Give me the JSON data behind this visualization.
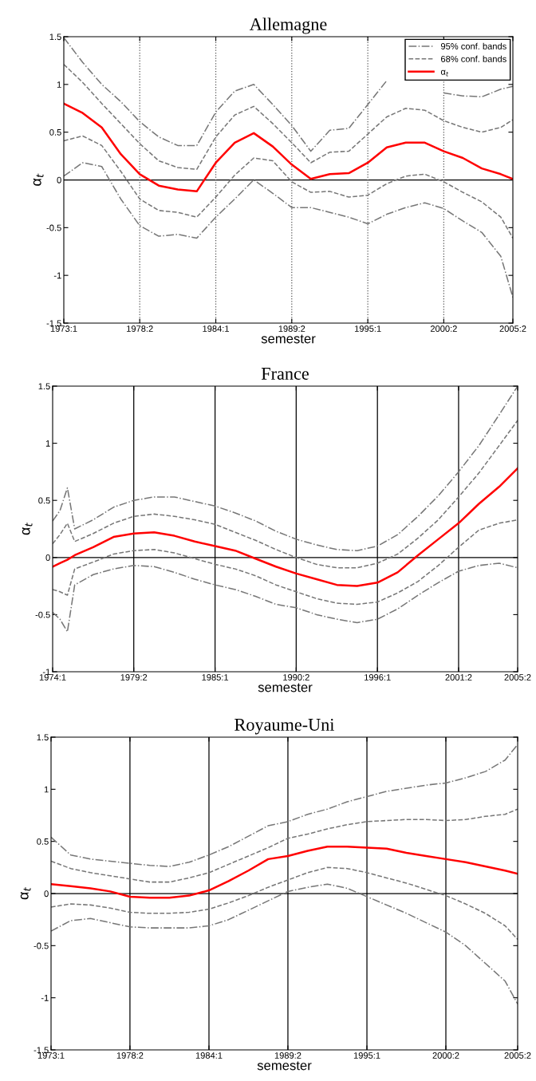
{
  "chart_data": [
    {
      "type": "line",
      "title": "Allemagne",
      "xlabel": "semester",
      "ylabel": "α$_{t}$",
      "legend": "top right",
      "x": [
        "1973-01-01",
        "1974-05-16",
        "1975-10-01",
        "1977-02-15",
        "1978-07-01",
        "1979-11-16",
        "1981-04-01",
        "1982-08-16",
        "1984-01-01",
        "1985-05-16",
        "1986-10-01",
        "1988-02-15",
        "1989-07-01",
        "1990-11-16",
        "1992-04-01",
        "1993-08-16",
        "1995-01-01",
        "1996-05-16",
        "1997-10-01",
        "1999-02-15",
        "2000-07-01",
        "2001-11-16",
        "2003-04-01",
        "2004-08-16",
        "2005-07-01"
      ],
      "xlim": [
        "1973-01-01",
        "2005-07-01"
      ],
      "xticks": [
        {
          "value": "1973-01-01",
          "label": "1973:1"
        },
        {
          "value": "1978-07-01",
          "label": "1978:2"
        },
        {
          "value": "1984-01-01",
          "label": "1984:1"
        },
        {
          "value": "1989-07-01",
          "label": "1989:2"
        },
        {
          "value": "1995-01-01",
          "label": "1995:1"
        },
        {
          "value": "2000-07-01",
          "label": "2000:2"
        },
        {
          "value": "2005-07-01",
          "label": "2005:2"
        }
      ],
      "ylim": [
        -1.5,
        1.5
      ],
      "yticks": [
        -1.5,
        -1,
        -0.5,
        0,
        0.5,
        1,
        1.5
      ],
      "ref_lines": [
        {
          "axis": "y",
          "value": 0,
          "color": "#000000",
          "line_style": "solid"
        },
        {
          "axis": "x",
          "value": "1978-07-01",
          "color": "#555555",
          "line_style": "dotted"
        },
        {
          "axis": "x",
          "value": "1984-01-01",
          "color": "#555555",
          "line_style": "dotted"
        },
        {
          "axis": "x",
          "value": "1989-07-01",
          "color": "#555555",
          "line_style": "dotted"
        },
        {
          "axis": "x",
          "value": "1995-01-01",
          "color": "#555555",
          "line_style": "dotted"
        },
        {
          "axis": "x",
          "value": "2000-07-01",
          "color": "#555555",
          "line_style": "dotted"
        }
      ],
      "series": [
        {
          "name": "95% conf. bands",
          "color": "#777777",
          "line_style": "dashdot",
          "values": [
            1.49,
            1.23,
            1.0,
            0.82,
            0.61,
            0.45,
            0.36,
            0.36,
            0.71,
            0.93,
            1.0,
            0.79,
            0.57,
            0.3,
            0.52,
            0.54,
            0.79,
            1.04,
            null,
            null,
            0.91,
            0.88,
            0.87,
            0.95,
            0.98
          ]
        },
        {
          "name": "68% conf. bands",
          "color": "#777777",
          "line_style": "dashed",
          "values": [
            1.21,
            1.02,
            0.8,
            0.59,
            0.38,
            0.2,
            0.13,
            0.11,
            0.45,
            0.68,
            0.77,
            0.59,
            0.39,
            0.18,
            0.29,
            0.3,
            0.48,
            0.66,
            0.75,
            0.73,
            0.62,
            0.55,
            0.5,
            0.55,
            0.63
          ]
        },
        {
          "name": "α$_{t}$",
          "color": "#ff0000",
          "line_style": "solid",
          "values": [
            0.8,
            0.7,
            0.55,
            0.27,
            0.06,
            -0.06,
            -0.1,
            -0.12,
            0.18,
            0.39,
            0.49,
            0.35,
            0.16,
            0.01,
            0.06,
            0.07,
            0.18,
            0.34,
            0.39,
            0.39,
            0.3,
            0.23,
            0.12,
            0.06,
            0.01
          ]
        },
        {
          "color": "#777777",
          "line_style": "dashed",
          "values": [
            0.41,
            0.46,
            0.36,
            0.09,
            -0.2,
            -0.32,
            -0.34,
            -0.39,
            -0.18,
            0.05,
            0.23,
            0.2,
            -0.02,
            -0.13,
            -0.12,
            -0.18,
            -0.16,
            -0.04,
            0.04,
            0.06,
            -0.02,
            -0.13,
            -0.23,
            -0.39,
            -0.61
          ]
        },
        {
          "color": "#777777",
          "line_style": "dashdot",
          "values": [
            0.04,
            0.18,
            0.14,
            -0.2,
            -0.48,
            -0.59,
            -0.57,
            -0.61,
            -0.39,
            -0.2,
            0.0,
            -0.14,
            -0.29,
            -0.29,
            -0.34,
            -0.39,
            -0.46,
            -0.36,
            -0.29,
            -0.24,
            -0.3,
            -0.43,
            -0.55,
            -0.8,
            -1.23
          ]
        }
      ]
    },
    {
      "type": "line",
      "title": "France",
      "xlabel": "semester",
      "ylabel": "α$_{t}$",
      "x": [
        "1974-01-01",
        "1974-07-01",
        "1975-01-01",
        "1975-07-01",
        "1976-10-01",
        "1978-02-15",
        "1979-07-01",
        "1980-11-16",
        "1982-04-01",
        "1983-08-16",
        "1985-01-01",
        "1986-05-16",
        "1987-10-01",
        "1989-02-15",
        "1990-07-01",
        "1991-11-16",
        "1993-04-01",
        "1994-08-16",
        "1996-01-01",
        "1997-05-16",
        "1998-10-01",
        "2000-02-15",
        "2001-07-01",
        "2002-11-16",
        "2004-04-01",
        "2005-07-01"
      ],
      "xlim": [
        "1974-01-01",
        "2005-07-01"
      ],
      "xticks": [
        {
          "value": "1974-01-01",
          "label": "1974:1"
        },
        {
          "value": "1979-07-01",
          "label": "1979:2"
        },
        {
          "value": "1985-01-01",
          "label": "1985:1"
        },
        {
          "value": "1990-07-01",
          "label": "1990:2"
        },
        {
          "value": "1996-01-01",
          "label": "1996:1"
        },
        {
          "value": "2001-07-01",
          "label": "2001:2"
        },
        {
          "value": "2005-07-01",
          "label": "2005:2"
        }
      ],
      "ylim": [
        -1,
        1.5
      ],
      "yticks": [
        -1,
        -0.5,
        0,
        0.5,
        1,
        1.5
      ],
      "ref_lines": [
        {
          "axis": "y",
          "value": 0,
          "color": "#000000",
          "line_style": "solid"
        },
        {
          "axis": "x",
          "value": "1979-07-01",
          "color": "#000000",
          "line_style": "solid"
        },
        {
          "axis": "x",
          "value": "1985-01-01",
          "color": "#000000",
          "line_style": "solid"
        },
        {
          "axis": "x",
          "value": "1990-07-01",
          "color": "#000000",
          "line_style": "solid"
        },
        {
          "axis": "x",
          "value": "1996-01-01",
          "color": "#000000",
          "line_style": "solid"
        },
        {
          "axis": "x",
          "value": "2001-07-01",
          "color": "#000000",
          "line_style": "solid"
        }
      ],
      "series": [
        {
          "color": "#777777",
          "line_style": "dashdot",
          "values": [
            0.32,
            0.41,
            0.61,
            0.25,
            0.33,
            0.44,
            0.5,
            0.53,
            0.53,
            0.49,
            0.45,
            0.39,
            0.32,
            0.23,
            0.16,
            0.11,
            0.07,
            0.06,
            0.1,
            0.2,
            0.36,
            0.54,
            0.75,
            0.98,
            1.25,
            1.5
          ]
        },
        {
          "color": "#777777",
          "line_style": "dashed",
          "values": [
            0.12,
            0.2,
            0.3,
            0.14,
            0.21,
            0.3,
            0.36,
            0.38,
            0.36,
            0.33,
            0.29,
            0.22,
            0.15,
            0.07,
            0.0,
            -0.06,
            -0.09,
            -0.09,
            -0.05,
            0.03,
            0.17,
            0.33,
            0.53,
            0.74,
            0.98,
            1.2
          ]
        },
        {
          "color": "#ff0000",
          "line_style": "solid",
          "values": [
            -0.08,
            -0.05,
            -0.02,
            0.02,
            0.09,
            0.18,
            0.21,
            0.22,
            0.19,
            0.14,
            0.1,
            0.06,
            -0.01,
            -0.08,
            -0.14,
            -0.19,
            -0.24,
            -0.25,
            -0.22,
            -0.13,
            0.02,
            0.16,
            0.3,
            0.47,
            0.62,
            0.78
          ]
        },
        {
          "color": "#777777",
          "line_style": "dashed",
          "values": [
            -0.28,
            -0.3,
            -0.33,
            -0.1,
            -0.04,
            0.03,
            0.06,
            0.07,
            0.04,
            -0.01,
            -0.06,
            -0.1,
            -0.16,
            -0.24,
            -0.3,
            -0.36,
            -0.4,
            -0.41,
            -0.39,
            -0.31,
            -0.21,
            -0.07,
            0.09,
            0.24,
            0.3,
            0.33
          ]
        },
        {
          "color": "#777777",
          "line_style": "dashdot",
          "values": [
            -0.48,
            -0.54,
            -0.65,
            -0.24,
            -0.15,
            -0.1,
            -0.07,
            -0.08,
            -0.13,
            -0.19,
            -0.24,
            -0.28,
            -0.34,
            -0.41,
            -0.44,
            -0.5,
            -0.54,
            -0.57,
            -0.54,
            -0.45,
            -0.33,
            -0.22,
            -0.12,
            -0.07,
            -0.05,
            -0.09
          ]
        }
      ]
    },
    {
      "type": "line",
      "title": "Royaume-Uni",
      "xlabel": "semester",
      "ylabel": "α$_{t}$",
      "x": [
        "1973-01-01",
        "1974-05-16",
        "1975-10-01",
        "1977-02-15",
        "1978-07-01",
        "1979-11-16",
        "1981-04-01",
        "1982-08-16",
        "1984-01-01",
        "1985-05-16",
        "1986-10-01",
        "1988-02-15",
        "1989-07-01",
        "1990-11-16",
        "1992-04-01",
        "1993-08-16",
        "1995-01-01",
        "1996-05-16",
        "1997-10-01",
        "1999-02-15",
        "2000-07-01",
        "2001-11-16",
        "2003-04-01",
        "2004-08-16",
        "2005-07-01"
      ],
      "xlim": [
        "1973-01-01",
        "2005-07-01"
      ],
      "xticks": [
        {
          "value": "1973-01-01",
          "label": "1973:1"
        },
        {
          "value": "1978-07-01",
          "label": "1978:2"
        },
        {
          "value": "1984-01-01",
          "label": "1984:1"
        },
        {
          "value": "1989-07-01",
          "label": "1989:2"
        },
        {
          "value": "1995-01-01",
          "label": "1995:1"
        },
        {
          "value": "2000-07-01",
          "label": "2000:2"
        },
        {
          "value": "2005-07-01",
          "label": "2005:2"
        }
      ],
      "ylim": [
        -1.5,
        1.5
      ],
      "yticks": [
        -1.5,
        -1,
        -0.5,
        0,
        0.5,
        1,
        1.5
      ],
      "ref_lines": [
        {
          "axis": "y",
          "value": 0,
          "color": "#000000",
          "line_style": "solid"
        },
        {
          "axis": "x",
          "value": "1978-07-01",
          "color": "#000000",
          "line_style": "solid"
        },
        {
          "axis": "x",
          "value": "1984-01-01",
          "color": "#000000",
          "line_style": "solid"
        },
        {
          "axis": "x",
          "value": "1989-07-01",
          "color": "#000000",
          "line_style": "solid"
        },
        {
          "axis": "x",
          "value": "1995-01-01",
          "color": "#000000",
          "line_style": "solid"
        },
        {
          "axis": "x",
          "value": "2000-07-01",
          "color": "#000000",
          "line_style": "solid"
        }
      ],
      "series": [
        {
          "color": "#777777",
          "line_style": "dashdot",
          "values": [
            0.54,
            0.37,
            0.33,
            0.31,
            0.29,
            0.27,
            0.26,
            0.3,
            0.37,
            0.45,
            0.55,
            0.65,
            0.69,
            0.76,
            0.81,
            0.88,
            0.93,
            0.98,
            1.01,
            1.04,
            1.06,
            1.11,
            1.17,
            1.28,
            1.43
          ]
        },
        {
          "color": "#777777",
          "line_style": "dashed",
          "values": [
            0.31,
            0.24,
            0.2,
            0.17,
            0.14,
            0.11,
            0.11,
            0.15,
            0.2,
            0.28,
            0.36,
            0.44,
            0.53,
            0.57,
            0.62,
            0.66,
            0.69,
            0.7,
            0.71,
            0.71,
            0.7,
            0.71,
            0.74,
            0.76,
            0.81
          ]
        },
        {
          "color": "#ff0000",
          "line_style": "solid",
          "values": [
            0.09,
            0.07,
            0.05,
            0.02,
            -0.03,
            -0.04,
            -0.04,
            -0.02,
            0.03,
            0.12,
            0.22,
            0.33,
            0.36,
            0.41,
            0.45,
            0.45,
            0.44,
            0.43,
            0.39,
            0.36,
            0.33,
            0.3,
            0.26,
            0.22,
            0.19
          ]
        },
        {
          "color": "#777777",
          "line_style": "dashed",
          "values": [
            -0.13,
            -0.1,
            -0.11,
            -0.14,
            -0.18,
            -0.19,
            -0.19,
            -0.18,
            -0.15,
            -0.09,
            -0.02,
            0.06,
            0.13,
            0.2,
            0.25,
            0.24,
            0.2,
            0.15,
            0.1,
            0.04,
            -0.02,
            -0.1,
            -0.19,
            -0.31,
            -0.44
          ]
        },
        {
          "color": "#777777",
          "line_style": "dashdot",
          "values": [
            -0.36,
            -0.26,
            -0.24,
            -0.28,
            -0.32,
            -0.33,
            -0.33,
            -0.33,
            -0.31,
            -0.25,
            -0.16,
            -0.07,
            0.02,
            0.06,
            0.09,
            0.05,
            -0.03,
            -0.11,
            -0.19,
            -0.28,
            -0.37,
            -0.5,
            -0.67,
            -0.84,
            -1.06
          ]
        }
      ]
    }
  ]
}
